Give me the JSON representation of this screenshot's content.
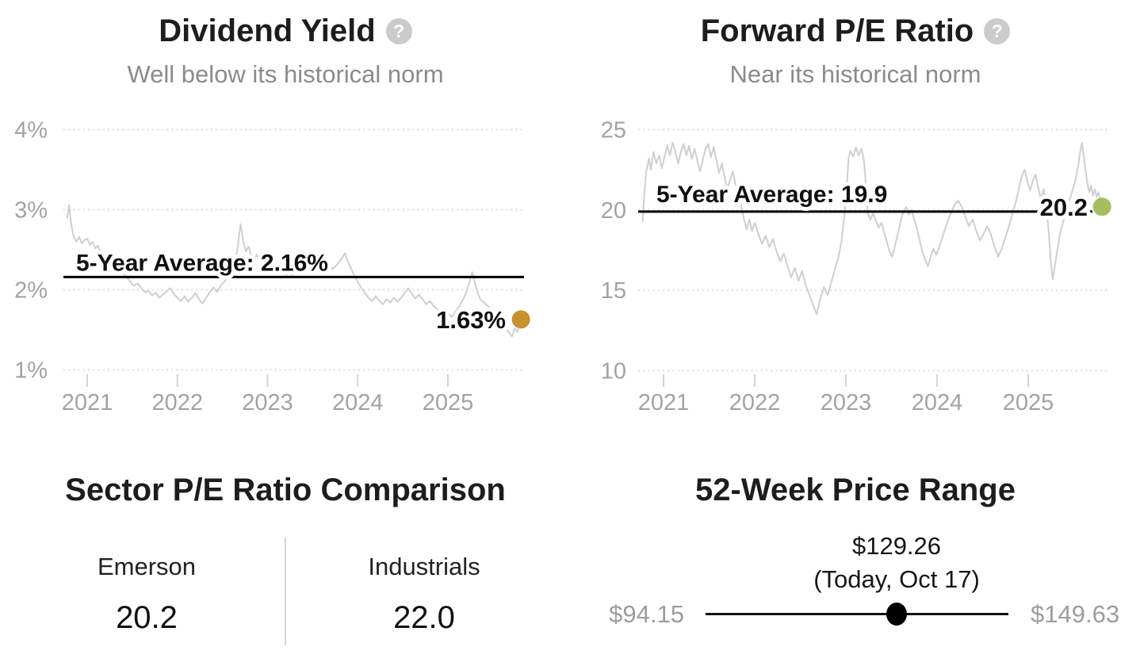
{
  "chart_data": [
    {
      "id": "dividend_yield",
      "type": "line",
      "title": "Dividend Yield",
      "subtitle": "Well below its historical norm",
      "help_glyph": "?",
      "series_name": "Dividend Yield",
      "unit": "%",
      "grid": "dotted-horizontal",
      "legend_position": "none",
      "xlim": [
        2020.73,
        2025.9
      ],
      "ylim": [
        1,
        4
      ],
      "y_ticks": [
        {
          "v": 4,
          "label": "4%"
        },
        {
          "v": 3,
          "label": "3%"
        },
        {
          "v": 2,
          "label": "2%"
        },
        {
          "v": 1,
          "label": "1%"
        }
      ],
      "x_ticks": [
        {
          "v": 2021,
          "label": "2021"
        },
        {
          "v": 2022,
          "label": "2022"
        },
        {
          "v": 2023,
          "label": "2023"
        },
        {
          "v": 2024,
          "label": "2024"
        },
        {
          "v": 2025,
          "label": "2025"
        }
      ],
      "average": {
        "label": "5-Year Average: 2.16%",
        "value": 2.16
      },
      "current": {
        "label": "1.63%",
        "value": 1.63
      },
      "line_color": "#cfcfcf",
      "dot_color": "#c5922e",
      "points": [
        [
          2020.78,
          2.9
        ],
        [
          2020.8,
          3.06
        ],
        [
          2020.82,
          2.84
        ],
        [
          2020.85,
          2.66
        ],
        [
          2020.88,
          2.6
        ],
        [
          2020.91,
          2.66
        ],
        [
          2020.94,
          2.58
        ],
        [
          2020.97,
          2.62
        ],
        [
          2021.0,
          2.64
        ],
        [
          2021.03,
          2.56
        ],
        [
          2021.06,
          2.6
        ],
        [
          2021.09,
          2.52
        ],
        [
          2021.12,
          2.55
        ],
        [
          2021.15,
          2.46
        ],
        [
          2021.18,
          2.4
        ],
        [
          2021.21,
          2.36
        ],
        [
          2021.24,
          2.32
        ],
        [
          2021.27,
          2.35
        ],
        [
          2021.3,
          2.28
        ],
        [
          2021.33,
          2.24
        ],
        [
          2021.36,
          2.26
        ],
        [
          2021.4,
          2.2
        ],
        [
          2021.44,
          2.15
        ],
        [
          2021.48,
          2.1
        ],
        [
          2021.52,
          2.05
        ],
        [
          2021.56,
          2.08
        ],
        [
          2021.6,
          2.02
        ],
        [
          2021.64,
          1.97
        ],
        [
          2021.68,
          1.99
        ],
        [
          2021.72,
          1.93
        ],
        [
          2021.76,
          1.96
        ],
        [
          2021.8,
          1.9
        ],
        [
          2021.84,
          1.94
        ],
        [
          2021.88,
          1.98
        ],
        [
          2021.92,
          2.02
        ],
        [
          2021.96,
          1.95
        ],
        [
          2022.0,
          1.9
        ],
        [
          2022.04,
          1.86
        ],
        [
          2022.08,
          1.92
        ],
        [
          2022.12,
          1.85
        ],
        [
          2022.16,
          1.9
        ],
        [
          2022.2,
          1.96
        ],
        [
          2022.24,
          1.88
        ],
        [
          2022.28,
          1.83
        ],
        [
          2022.32,
          1.9
        ],
        [
          2022.36,
          1.97
        ],
        [
          2022.4,
          2.03
        ],
        [
          2022.44,
          1.97
        ],
        [
          2022.48,
          2.05
        ],
        [
          2022.52,
          2.1
        ],
        [
          2022.56,
          2.16
        ],
        [
          2022.6,
          2.24
        ],
        [
          2022.64,
          2.32
        ],
        [
          2022.67,
          2.55
        ],
        [
          2022.7,
          2.82
        ],
        [
          2022.73,
          2.6
        ],
        [
          2022.76,
          2.48
        ],
        [
          2022.79,
          2.54
        ],
        [
          2022.82,
          2.42
        ],
        [
          2022.85,
          2.36
        ],
        [
          2022.88,
          2.44
        ],
        [
          2022.91,
          2.36
        ],
        [
          2022.94,
          2.41
        ],
        [
          2022.97,
          2.38
        ],
        [
          2023.0,
          2.42
        ],
        [
          2023.03,
          2.34
        ],
        [
          2023.06,
          2.38
        ],
        [
          2023.09,
          2.3
        ],
        [
          2023.12,
          2.26
        ],
        [
          2023.15,
          2.32
        ],
        [
          2023.18,
          2.24
        ],
        [
          2023.21,
          2.18
        ],
        [
          2023.24,
          2.24
        ],
        [
          2023.27,
          2.16
        ],
        [
          2023.3,
          2.22
        ],
        [
          2023.33,
          2.28
        ],
        [
          2023.36,
          2.22
        ],
        [
          2023.4,
          2.28
        ],
        [
          2023.44,
          2.34
        ],
        [
          2023.48,
          2.28
        ],
        [
          2023.52,
          2.34
        ],
        [
          2023.56,
          2.4
        ],
        [
          2023.6,
          2.34
        ],
        [
          2023.64,
          2.28
        ],
        [
          2023.68,
          2.32
        ],
        [
          2023.72,
          2.26
        ],
        [
          2023.76,
          2.3
        ],
        [
          2023.8,
          2.36
        ],
        [
          2023.84,
          2.42
        ],
        [
          2023.86,
          2.46
        ],
        [
          2023.88,
          2.38
        ],
        [
          2023.92,
          2.28
        ],
        [
          2023.96,
          2.18
        ],
        [
          2024.0,
          2.1
        ],
        [
          2024.04,
          2.02
        ],
        [
          2024.08,
          1.96
        ],
        [
          2024.12,
          1.9
        ],
        [
          2024.16,
          1.86
        ],
        [
          2024.2,
          1.92
        ],
        [
          2024.24,
          1.86
        ],
        [
          2024.28,
          1.82
        ],
        [
          2024.32,
          1.88
        ],
        [
          2024.36,
          1.84
        ],
        [
          2024.4,
          1.9
        ],
        [
          2024.44,
          1.85
        ],
        [
          2024.48,
          1.9
        ],
        [
          2024.52,
          1.96
        ],
        [
          2024.56,
          2.02
        ],
        [
          2024.6,
          1.95
        ],
        [
          2024.64,
          1.89
        ],
        [
          2024.68,
          1.94
        ],
        [
          2024.72,
          1.88
        ],
        [
          2024.76,
          1.82
        ],
        [
          2024.8,
          1.86
        ],
        [
          2024.84,
          1.8
        ],
        [
          2024.88,
          1.76
        ],
        [
          2024.92,
          1.72
        ],
        [
          2024.96,
          1.68
        ],
        [
          2025.0,
          1.72
        ],
        [
          2025.04,
          1.66
        ],
        [
          2025.08,
          1.72
        ],
        [
          2025.12,
          1.78
        ],
        [
          2025.16,
          1.86
        ],
        [
          2025.2,
          1.96
        ],
        [
          2025.24,
          2.1
        ],
        [
          2025.27,
          2.22
        ],
        [
          2025.3,
          2.08
        ],
        [
          2025.33,
          1.96
        ],
        [
          2025.36,
          1.88
        ],
        [
          2025.4,
          1.84
        ],
        [
          2025.44,
          1.8
        ],
        [
          2025.48,
          1.76
        ],
        [
          2025.52,
          1.7
        ],
        [
          2025.56,
          1.63
        ],
        [
          2025.6,
          1.57
        ],
        [
          2025.64,
          1.52
        ],
        [
          2025.68,
          1.46
        ],
        [
          2025.71,
          1.42
        ],
        [
          2025.74,
          1.52
        ],
        [
          2025.77,
          1.47
        ],
        [
          2025.79,
          1.55
        ],
        [
          2025.81,
          1.63
        ]
      ]
    },
    {
      "id": "forward_pe",
      "type": "line",
      "title": "Forward P/E Ratio",
      "subtitle": "Near its historical norm",
      "help_glyph": "?",
      "series_name": "Forward P/E",
      "unit": "",
      "grid": "dotted-horizontal",
      "legend_position": "none",
      "xlim": [
        2020.73,
        2025.9
      ],
      "ylim": [
        10,
        25
      ],
      "y_ticks": [
        {
          "v": 25,
          "label": "25"
        },
        {
          "v": 20,
          "label": "20"
        },
        {
          "v": 15,
          "label": "15"
        },
        {
          "v": 10,
          "label": "10"
        }
      ],
      "x_ticks": [
        {
          "v": 2021,
          "label": "2021"
        },
        {
          "v": 2022,
          "label": "2022"
        },
        {
          "v": 2023,
          "label": "2023"
        },
        {
          "v": 2024,
          "label": "2024"
        },
        {
          "v": 2025,
          "label": "2025"
        }
      ],
      "average": {
        "label": "5-Year Average: 19.9",
        "value": 19.9
      },
      "current": {
        "label": "20.2",
        "value": 20.2
      },
      "line_color": "#cfcfcf",
      "dot_color": "#a6be5d",
      "points": [
        [
          2020.77,
          19.3
        ],
        [
          2020.79,
          21.0
        ],
        [
          2020.81,
          22.4
        ],
        [
          2020.84,
          23.2
        ],
        [
          2020.86,
          22.5
        ],
        [
          2020.89,
          23.6
        ],
        [
          2020.92,
          22.9
        ],
        [
          2020.95,
          23.4
        ],
        [
          2020.98,
          22.6
        ],
        [
          2021.01,
          23.3
        ],
        [
          2021.04,
          24.0
        ],
        [
          2021.07,
          23.4
        ],
        [
          2021.1,
          24.2
        ],
        [
          2021.13,
          23.6
        ],
        [
          2021.16,
          22.9
        ],
        [
          2021.19,
          23.6
        ],
        [
          2021.22,
          24.1
        ],
        [
          2021.25,
          23.4
        ],
        [
          2021.28,
          24.0
        ],
        [
          2021.31,
          23.2
        ],
        [
          2021.34,
          23.8
        ],
        [
          2021.37,
          23.1
        ],
        [
          2021.4,
          22.4
        ],
        [
          2021.43,
          23.1
        ],
        [
          2021.46,
          23.8
        ],
        [
          2021.49,
          24.1
        ],
        [
          2021.52,
          23.3
        ],
        [
          2021.55,
          23.9
        ],
        [
          2021.58,
          23.1
        ],
        [
          2021.61,
          22.3
        ],
        [
          2021.64,
          22.9
        ],
        [
          2021.67,
          22.0
        ],
        [
          2021.7,
          21.3
        ],
        [
          2021.73,
          21.9
        ],
        [
          2021.76,
          22.4
        ],
        [
          2021.79,
          21.6
        ],
        [
          2021.82,
          21.0
        ],
        [
          2021.85,
          20.3
        ],
        [
          2021.88,
          19.5
        ],
        [
          2021.91,
          18.8
        ],
        [
          2021.94,
          19.4
        ],
        [
          2021.97,
          18.7
        ],
        [
          2022.0,
          19.2
        ],
        [
          2022.04,
          18.5
        ],
        [
          2022.08,
          17.9
        ],
        [
          2022.12,
          18.4
        ],
        [
          2022.16,
          17.7
        ],
        [
          2022.2,
          18.2
        ],
        [
          2022.24,
          17.4
        ],
        [
          2022.28,
          16.8
        ],
        [
          2022.32,
          17.3
        ],
        [
          2022.36,
          16.5
        ],
        [
          2022.4,
          15.8
        ],
        [
          2022.44,
          16.4
        ],
        [
          2022.48,
          15.6
        ],
        [
          2022.52,
          16.2
        ],
        [
          2022.56,
          15.3
        ],
        [
          2022.6,
          14.7
        ],
        [
          2022.64,
          14.1
        ],
        [
          2022.68,
          13.5
        ],
        [
          2022.72,
          14.5
        ],
        [
          2022.76,
          15.2
        ],
        [
          2022.8,
          14.7
        ],
        [
          2022.84,
          15.5
        ],
        [
          2022.88,
          16.3
        ],
        [
          2022.92,
          17.1
        ],
        [
          2022.95,
          18.0
        ],
        [
          2022.98,
          19.5
        ],
        [
          2023.01,
          21.5
        ],
        [
          2023.03,
          23.2
        ],
        [
          2023.05,
          23.7
        ],
        [
          2023.08,
          23.3
        ],
        [
          2023.11,
          23.9
        ],
        [
          2023.14,
          23.4
        ],
        [
          2023.17,
          23.8
        ],
        [
          2023.2,
          23.0
        ],
        [
          2023.22,
          21.5
        ],
        [
          2023.24,
          19.8
        ],
        [
          2023.27,
          19.4
        ],
        [
          2023.3,
          19.8
        ],
        [
          2023.33,
          19.3
        ],
        [
          2023.36,
          18.9
        ],
        [
          2023.39,
          19.2
        ],
        [
          2023.42,
          18.6
        ],
        [
          2023.45,
          18.0
        ],
        [
          2023.48,
          17.4
        ],
        [
          2023.51,
          17.1
        ],
        [
          2023.54,
          17.8
        ],
        [
          2023.57,
          18.5
        ],
        [
          2023.6,
          19.3
        ],
        [
          2023.63,
          19.9
        ],
        [
          2023.66,
          20.2
        ],
        [
          2023.69,
          19.7
        ],
        [
          2023.72,
          20.0
        ],
        [
          2023.75,
          19.4
        ],
        [
          2023.78,
          18.8
        ],
        [
          2023.81,
          18.1
        ],
        [
          2023.84,
          17.4
        ],
        [
          2023.87,
          16.9
        ],
        [
          2023.9,
          16.5
        ],
        [
          2023.93,
          17.1
        ],
        [
          2023.96,
          17.6
        ],
        [
          2023.99,
          17.2
        ],
        [
          2024.03,
          17.8
        ],
        [
          2024.07,
          18.5
        ],
        [
          2024.11,
          19.2
        ],
        [
          2024.15,
          19.8
        ],
        [
          2024.19,
          20.3
        ],
        [
          2024.23,
          20.6
        ],
        [
          2024.27,
          20.2
        ],
        [
          2024.31,
          19.6
        ],
        [
          2024.35,
          19.0
        ],
        [
          2024.39,
          19.4
        ],
        [
          2024.43,
          18.7
        ],
        [
          2024.47,
          18.1
        ],
        [
          2024.51,
          18.5
        ],
        [
          2024.55,
          19.0
        ],
        [
          2024.59,
          18.5
        ],
        [
          2024.63,
          17.7
        ],
        [
          2024.67,
          17.1
        ],
        [
          2024.71,
          17.6
        ],
        [
          2024.75,
          18.3
        ],
        [
          2024.79,
          19.0
        ],
        [
          2024.83,
          19.8
        ],
        [
          2024.87,
          20.6
        ],
        [
          2024.9,
          21.4
        ],
        [
          2024.93,
          22.1
        ],
        [
          2024.96,
          22.5
        ],
        [
          2024.99,
          21.8
        ],
        [
          2025.02,
          21.2
        ],
        [
          2025.05,
          21.8
        ],
        [
          2025.08,
          22.2
        ],
        [
          2025.11,
          21.4
        ],
        [
          2025.14,
          20.7
        ],
        [
          2025.17,
          21.3
        ],
        [
          2025.19,
          20.5
        ],
        [
          2025.21,
          19.6
        ],
        [
          2025.23,
          18.2
        ],
        [
          2025.25,
          16.6
        ],
        [
          2025.27,
          15.7
        ],
        [
          2025.3,
          16.8
        ],
        [
          2025.33,
          17.9
        ],
        [
          2025.36,
          18.8
        ],
        [
          2025.4,
          19.6
        ],
        [
          2025.44,
          20.4
        ],
        [
          2025.48,
          21.1
        ],
        [
          2025.52,
          21.9
        ],
        [
          2025.55,
          22.8
        ],
        [
          2025.57,
          23.6
        ],
        [
          2025.59,
          24.2
        ],
        [
          2025.61,
          23.3
        ],
        [
          2025.63,
          22.4
        ],
        [
          2025.65,
          21.6
        ],
        [
          2025.67,
          21.1
        ],
        [
          2025.69,
          21.5
        ],
        [
          2025.71,
          20.9
        ],
        [
          2025.73,
          21.3
        ],
        [
          2025.75,
          20.8
        ],
        [
          2025.77,
          21.1
        ],
        [
          2025.79,
          20.6
        ],
        [
          2025.81,
          20.2
        ]
      ]
    },
    {
      "id": "sector_pe_comparison",
      "type": "table",
      "title": "Sector P/E Ratio Comparison",
      "categories": [
        "Emerson",
        "Industrials"
      ],
      "values": [
        "20.2",
        "22.0"
      ]
    },
    {
      "id": "price_range_52w",
      "type": "range",
      "title": "52-Week Price Range",
      "low": 94.15,
      "high": 149.63,
      "current": 129.26,
      "low_label": "$94.15",
      "high_label": "$149.63",
      "current_label": "$129.26",
      "current_note": "(Today, Oct 17)"
    }
  ],
  "colors": {
    "dividend_dot": "#c5922e",
    "pe_dot": "#a6be5d",
    "series_line": "#cfcfcf",
    "average_line": "#000000",
    "muted_text": "#8b8b8b",
    "axis_text": "#a3a3a3"
  }
}
